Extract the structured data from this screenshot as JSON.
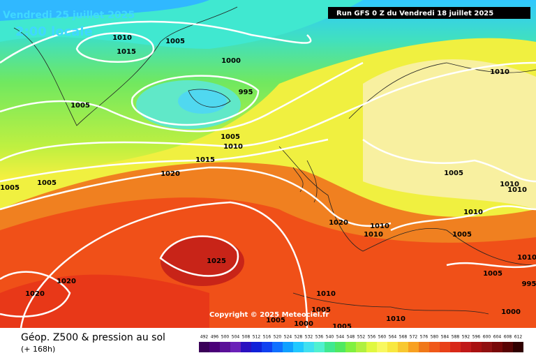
{
  "header": {
    "date": "Vendredi 25 juillet 2025",
    "time": "2:00 locale",
    "run": "Run GFS 0 Z du Vendredi 18 juillet 2025"
  },
  "copyright": "Copyright © 2025 Meteociel.fr",
  "footer": {
    "title": "Géop. Z500 & pression au sol",
    "range": "(+ 168h)"
  },
  "isobar_labels": [
    "1010",
    "1015",
    "1005",
    "1000",
    "995",
    "1005",
    "1005",
    "1010",
    "1015",
    "1020",
    "1005",
    "1005",
    "1010",
    "1005",
    "1010",
    "1010",
    "1010",
    "1020",
    "1010",
    "1010",
    "1005",
    "1025",
    "1020",
    "1020",
    "1005",
    "1010",
    "995",
    "1010",
    "1005",
    "1005",
    "1000",
    "1005",
    "1010",
    "1000"
  ],
  "legend": {
    "values": [
      492,
      496,
      500,
      504,
      508,
      512,
      516,
      520,
      524,
      528,
      532,
      536,
      540,
      544,
      548,
      552,
      556,
      560,
      564,
      568,
      572,
      576,
      580,
      584,
      588,
      592,
      596,
      600,
      604,
      608,
      612
    ],
    "colors": [
      "#3a0058",
      "#4a0078",
      "#5a1098",
      "#6a20b8",
      "#2a10c0",
      "#1020d8",
      "#1040f0",
      "#1070ff",
      "#10a0ff",
      "#20c8ff",
      "#40e0f0",
      "#50f0d0",
      "#40e890",
      "#50e860",
      "#80f040",
      "#b0f040",
      "#e0f840",
      "#f8f860",
      "#f8e840",
      "#f8c830",
      "#f8a020",
      "#f07818",
      "#f05818",
      "#e84018",
      "#d82818",
      "#c01818",
      "#a81010",
      "#901010",
      "#780808",
      "#580404",
      "#300000"
    ]
  }
}
